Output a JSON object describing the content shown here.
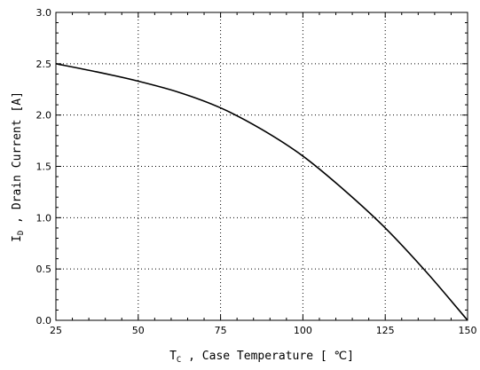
{
  "chart_data": {
    "type": "line",
    "x_axis": {
      "label_main": "T",
      "label_sub": "C",
      "label_rest": " , Case Temperature  [ ℃]",
      "range": [
        25,
        150
      ],
      "ticks": [
        25,
        50,
        75,
        100,
        125,
        150
      ],
      "tick_labels": [
        "25",
        "50",
        "75",
        "100",
        "125",
        "150"
      ]
    },
    "y_axis": {
      "label_main": "I",
      "label_sub": "D",
      "label_rest": " , Drain Current   [A]",
      "range": [
        0,
        3.0
      ],
      "ticks": [
        0,
        0.5,
        1.0,
        1.5,
        2.0,
        2.5,
        3.0
      ],
      "tick_labels": [
        "0.0",
        "0.5",
        "1.0",
        "1.5",
        "2.0",
        "2.5",
        "3.0"
      ]
    },
    "grid": "dotted",
    "series": [
      {
        "x": [
          25,
          37.5,
          50,
          62.5,
          75,
          87.5,
          100,
          112.5,
          125,
          137.5,
          150
        ],
        "y": [
          2.5,
          2.42,
          2.33,
          2.22,
          2.07,
          1.86,
          1.6,
          1.27,
          0.9,
          0.47,
          0.0
        ]
      }
    ]
  }
}
